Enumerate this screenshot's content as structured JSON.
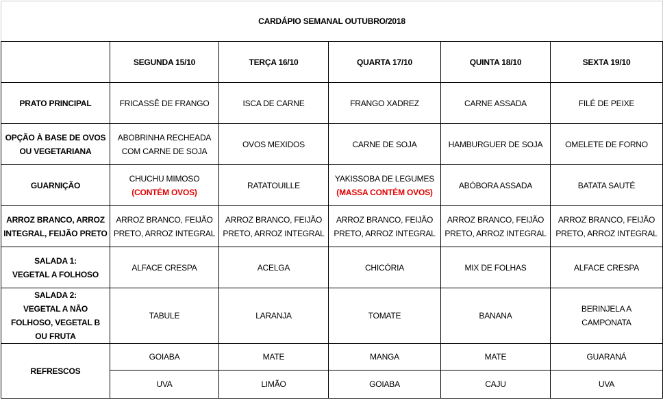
{
  "title": "CARDÁPIO SEMANAL OUTUBRO/2018",
  "days": [
    "SEGUNDA  15/10",
    "TERÇA 16/10",
    "QUARTA 17/10",
    "QUINTA 18/10",
    "SEXTA 19/10"
  ],
  "rows": [
    {
      "label": [
        "PRATO PRINCIPAL"
      ],
      "cells": [
        {
          "lines": [
            "FRICASSÊ DE FRANGO"
          ]
        },
        {
          "lines": [
            "ISCA DE CARNE"
          ]
        },
        {
          "lines": [
            "FRANGO XADREZ"
          ]
        },
        {
          "lines": [
            "CARNE ASSADA"
          ]
        },
        {
          "lines": [
            "FILÉ DE PEIXE"
          ]
        }
      ]
    },
    {
      "label": [
        "OPÇÃO À BASE DE OVOS",
        "OU VEGETARIANA"
      ],
      "cells": [
        {
          "lines": [
            "ABOBRINHA RECHEADA",
            "COM CARNE DE SOJA"
          ]
        },
        {
          "lines": [
            "OVOS MEXIDOS"
          ]
        },
        {
          "lines": [
            "CARNE DE SOJA"
          ]
        },
        {
          "lines": [
            "HAMBURGUER DE SOJA"
          ]
        },
        {
          "lines": [
            "OMELETE DE FORNO"
          ]
        }
      ]
    },
    {
      "label": [
        "GUARNIÇÃO"
      ],
      "cells": [
        {
          "lines": [
            "CHUCHU MIMOSO"
          ],
          "warning": "(CONTÉM OVOS)"
        },
        {
          "lines": [
            "RATATOUILLE"
          ]
        },
        {
          "lines": [
            "YAKISSOBA DE LEGUMES"
          ],
          "warning": "(MASSA CONTÉM OVOS)"
        },
        {
          "lines": [
            "ABÓBORA ASSADA"
          ]
        },
        {
          "lines": [
            "BATATA SAUTÉ"
          ]
        }
      ]
    },
    {
      "label": [
        "ARROZ BRANCO, ARROZ",
        "INTEGRAL, FEIJÃO PRETO"
      ],
      "cells": [
        {
          "lines": [
            "ARROZ BRANCO, FEIJÃO",
            "PRETO, ARROZ INTEGRAL"
          ]
        },
        {
          "lines": [
            "ARROZ BRANCO, FEIJÃO",
            "PRETO, ARROZ INTEGRAL"
          ]
        },
        {
          "lines": [
            "ARROZ BRANCO, FEIJÃO",
            "PRETO, ARROZ INTEGRAL"
          ]
        },
        {
          "lines": [
            "ARROZ BRANCO, FEIJÃO",
            "PRETO, ARROZ INTEGRAL"
          ]
        },
        {
          "lines": [
            "ARROZ BRANCO, FEIJÃO",
            "PRETO, ARROZ INTEGRAL"
          ]
        }
      ]
    },
    {
      "label": [
        "SALADA 1:",
        "VEGETAL A FOLHOSO"
      ],
      "cells": [
        {
          "lines": [
            "ALFACE CRESPA"
          ]
        },
        {
          "lines": [
            "ACELGA"
          ]
        },
        {
          "lines": [
            "CHICÓRIA"
          ]
        },
        {
          "lines": [
            "MIX DE FOLHAS"
          ]
        },
        {
          "lines": [
            "ALFACE CRESPA"
          ]
        }
      ]
    },
    {
      "label": [
        "SALADA 2:",
        "VEGETAL A NÃO",
        "FOLHOSO, VEGETAL B",
        "OU FRUTA"
      ],
      "cells": [
        {
          "lines": [
            "TABULE"
          ]
        },
        {
          "lines": [
            "LARANJA"
          ]
        },
        {
          "lines": [
            "TOMATE"
          ]
        },
        {
          "lines": [
            "BANANA"
          ]
        },
        {
          "lines": [
            "BERINJELA A",
            "CAMPONATA"
          ]
        }
      ]
    }
  ],
  "refrescos": {
    "label": "REFRESCOS",
    "row1": [
      "GOIABA",
      "MATE",
      "MANGA",
      "MATE",
      "GUARANÁ"
    ],
    "row2": [
      "UVA",
      "LIMÃO",
      "GOIABA",
      "CAJU",
      "UVA"
    ]
  },
  "colors": {
    "warning": "#e00000"
  }
}
